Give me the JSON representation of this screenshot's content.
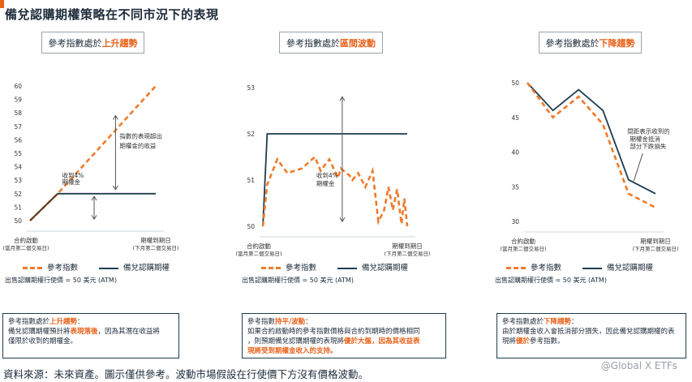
{
  "title": "備兌認購期權策略在不同市況下的表現",
  "source": "資料來源：未來資產。圖示僅供參考。波動市場假設在行使價下方沒有價格波動。",
  "watermark": "@Global X ETFs",
  "colors": {
    "underlying": "#ef7a2a",
    "covered_call": "#1e3d4f",
    "accent": "#e8621a"
  },
  "legend": {
    "underlying": "參考指數",
    "covered_call": "備兌認購期權"
  },
  "strike_note": "出售認購期權行使價 = 50 美元 (ATM)",
  "panels": [
    {
      "header_prefix": "參考指數處於",
      "header_hl": "上升趨勢",
      "note": {
        "line1_prefix": "參考指數處於",
        "line1_hl": "上升趨勢",
        "line1_suffix": "：",
        "line2_prefix": "備兌認購期權預計將",
        "line2_hl": "表現落後",
        "line2_suffix": "，因為其潛在收益將",
        "line3": "僅限於收到的期權金。"
      },
      "annotations": [
        "指數的表現超出",
        "期權金的收益",
        "收到4%",
        "期權金"
      ]
    },
    {
      "header_prefix": "參考指數處於",
      "header_hl": "區間波動",
      "note": {
        "line1_prefix": "參考指數",
        "line1_hl": "持平/波動",
        "line1_suffix": "：",
        "line2": "如果合約啟動時的參考指數價格與合約到期時的價格相同",
        "line3_prefix": "，則預期備兌認購期權的表現將",
        "line3_hl": "優於大盤，因為其收益表",
        "line4_hl": "現將受到期權金收入的支持。"
      },
      "annotations": [
        "收到4%",
        "期權金"
      ]
    },
    {
      "header_prefix": "參考指數處於",
      "header_hl": "下降趨勢",
      "note": {
        "line1_prefix": "參考指數處於",
        "line1_hl": "下降趨勢",
        "line1_suffix": "：",
        "line2": "由於期權金收入會抵消部分損失，因此備兌認購期權的表",
        "line3_prefix": "現將",
        "line3_hl": "優於",
        "line3_suffix": "參考指數。"
      },
      "annotations": [
        "間距表示收到的",
        "期權金抵消",
        "部分下跌損失"
      ]
    }
  ],
  "chart_data": [
    {
      "type": "line",
      "title": "參考指數處於上升趨勢",
      "x_labels": {
        "start": [
          "合約啟動",
          "(當月第二個交易日)"
        ],
        "end": [
          "期權到期日",
          "(下月第二個交易日)"
        ]
      },
      "ylim": [
        50,
        60
      ],
      "yticks": [
        50,
        51,
        52,
        53,
        54,
        55,
        56,
        57,
        58,
        59,
        60
      ],
      "x": [
        0,
        0.22,
        1
      ],
      "series": [
        {
          "name": "參考指數",
          "values": [
            50,
            52,
            60
          ]
        },
        {
          "name": "備兌認購期權",
          "values": [
            50,
            52,
            52
          ]
        }
      ]
    },
    {
      "type": "line",
      "title": "參考指數處於區間波動",
      "x_labels": {
        "start": [
          "合約啟動",
          "(當月第二個交易日)"
        ],
        "end": [
          "期權到期日",
          "(下月第二個交易日)"
        ]
      },
      "ylim": [
        50,
        53
      ],
      "yticks": [
        50,
        51,
        52,
        53
      ],
      "x": [
        0,
        0.03,
        0.1,
        0.17,
        0.27,
        0.36,
        0.4,
        0.46,
        0.52,
        0.54,
        0.6,
        0.62,
        0.66,
        0.71,
        0.76,
        0.8,
        0.84,
        0.87,
        0.9,
        0.93,
        0.96,
        0.98,
        1
      ],
      "series": [
        {
          "name": "參考指數",
          "values": [
            50,
            50.9,
            51.45,
            51.15,
            51.25,
            51.5,
            51.2,
            51.45,
            51.05,
            51.25,
            51.1,
            51.0,
            51.15,
            50.85,
            51.2,
            50.1,
            50.35,
            50.85,
            50.35,
            50.8,
            50.05,
            50.6,
            50.0
          ]
        },
        {
          "name": "備兌認購期權",
          "values": [
            50,
            52,
            52,
            52,
            52,
            52,
            52,
            52,
            52,
            52,
            52,
            52,
            52,
            52,
            52,
            52,
            52,
            52,
            52,
            52,
            52,
            52,
            52
          ]
        }
      ]
    },
    {
      "type": "line",
      "title": "參考指數處於下降趨勢",
      "x_labels": {
        "start": [
          "合約啟動",
          "(當月第二個交易日)"
        ],
        "end": [
          "期權到期日",
          "(下月第二個交易日)"
        ]
      },
      "ylim": [
        30,
        50
      ],
      "yticks": [
        30,
        35,
        40,
        45,
        50
      ],
      "x": [
        0,
        0.2,
        0.4,
        0.59,
        0.79,
        1
      ],
      "series": [
        {
          "name": "參考指數",
          "values": [
            50,
            45,
            48,
            44,
            34,
            32
          ]
        },
        {
          "name": "備兌認購期權",
          "values": [
            50,
            46,
            49,
            46,
            36,
            34
          ]
        }
      ]
    }
  ]
}
